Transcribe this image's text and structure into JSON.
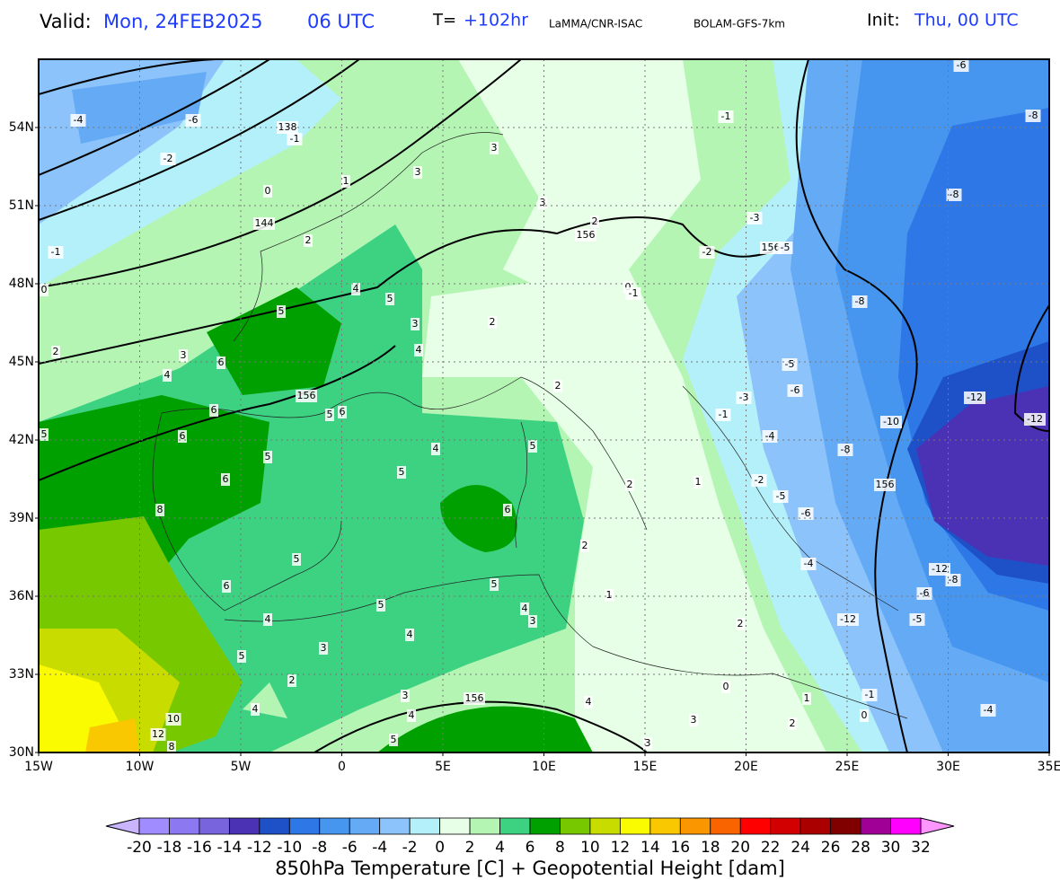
{
  "header": {
    "valid_label": "Valid:",
    "valid_date": "Mon, 24FEB2025",
    "valid_time": "06 UTC",
    "lead_label": "T=",
    "lead_value": "+102hr",
    "source": "LaMMA/CNR-ISAC",
    "model": "BOLAM-GFS-7km",
    "init_label": "Init:",
    "init_value": "Thu, 00 UTC"
  },
  "map": {
    "lat_labels": [
      "54N",
      "51N",
      "48N",
      "45N",
      "42N",
      "39N",
      "36N",
      "33N",
      "30N"
    ],
    "lon_labels": [
      "15W",
      "10W",
      "5W",
      "0",
      "5E",
      "10E",
      "15E",
      "20E",
      "25E",
      "30E",
      "35E"
    ],
    "contour_labels": [
      -4,
      -6,
      138,
      -1,
      -2,
      0,
      1,
      3,
      3,
      -1,
      -6,
      -8,
      3,
      2,
      -3,
      -8,
      -1,
      144,
      2,
      156,
      -2,
      156,
      -5,
      0,
      4,
      5,
      0,
      -1,
      -8,
      5,
      3,
      2,
      4,
      2,
      3,
      6,
      4,
      -5,
      2,
      156,
      -6,
      -3,
      -12,
      6,
      5,
      6,
      -1,
      -10,
      -12,
      5,
      6,
      4,
      5,
      -4,
      -8,
      5,
      5,
      6,
      2,
      1,
      -2,
      156,
      -5,
      8,
      6,
      -6,
      2,
      -4,
      5,
      -12,
      -8,
      6,
      5,
      1,
      -6,
      5,
      4,
      -12,
      -5,
      4,
      3,
      2,
      4,
      3,
      5,
      0,
      2,
      3,
      156,
      1,
      -1,
      4,
      -4,
      4,
      4,
      0,
      10,
      3,
      2,
      12,
      5,
      3,
      8
    ]
  },
  "colorbar": {
    "ticks": [
      -20,
      -18,
      -16,
      -14,
      -12,
      -10,
      -8,
      -6,
      -4,
      -2,
      0,
      2,
      4,
      6,
      8,
      10,
      12,
      14,
      16,
      18,
      20,
      22,
      24,
      26,
      28,
      30,
      32
    ],
    "colors": [
      "#a08cff",
      "#8c78f0",
      "#7864dc",
      "#4b32b4",
      "#1e50c8",
      "#2d78e6",
      "#4696f0",
      "#64aaf5",
      "#8cc3fa",
      "#b4f0fa",
      "#e6ffe6",
      "#b4f5b4",
      "#3cd282",
      "#00a000",
      "#78c800",
      "#c8dc00",
      "#fafa00",
      "#fac800",
      "#fa9600",
      "#fa6400",
      "#ff0000",
      "#d20000",
      "#aa0000",
      "#800000",
      "#a00096",
      "#ff00ff"
    ],
    "under_color": "#c8b4ff",
    "over_color": "#ff96ff",
    "title": "850hPa Temperature [C] + Geopotential Height [dam]"
  }
}
